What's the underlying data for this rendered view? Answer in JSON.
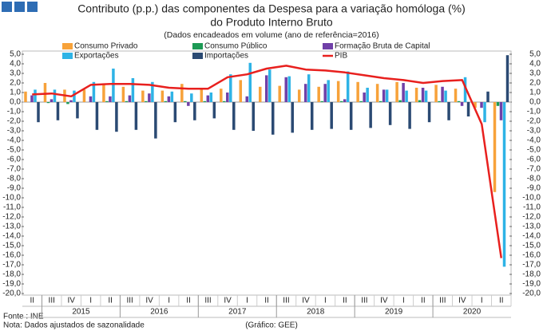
{
  "chart_data": {
    "type": "bar",
    "title": "Contributo (p.p.) das componentes da Despesa para a variação homóloga (%)",
    "title_line2": "do Produto Interno Bruto",
    "subtitle": "(Dados encadeados em volume (ano de referência=2016)",
    "source": "Fonte : INE",
    "note": "Nota: Dados ajustados de sazonalidade",
    "credit": "(Gráfico: GEE)",
    "categories": [
      "II",
      "III",
      "IV",
      "I",
      "II",
      "III",
      "IV",
      "I",
      "II",
      "III",
      "IV",
      "I",
      "II",
      "III",
      "IV",
      "I",
      "II",
      "III",
      "IV",
      "I",
      "II",
      "III",
      "IV",
      "I",
      "II"
    ],
    "year_labels": [
      "2015",
      "2016",
      "2017",
      "2018",
      "2019",
      "2020"
    ],
    "legend": "top",
    "grid": false,
    "series": [
      {
        "name": "Consumo Privado",
        "color": "#f7a23a",
        "values": [
          1.1,
          2.0,
          1.3,
          1.3,
          1.8,
          1.6,
          1.2,
          1.2,
          1.9,
          1.4,
          1.4,
          2.3,
          1.6,
          1.7,
          1.3,
          1.6,
          2.2,
          2.1,
          1.9,
          2.1,
          1.5,
          1.8,
          1.4,
          -0.6,
          -9.4
        ]
      },
      {
        "name": "Consumo Público",
        "color": "#1d9a55",
        "values": [
          0.0,
          -0.1,
          -0.2,
          0.0,
          0.1,
          0.1,
          0.1,
          0.1,
          0.1,
          0.1,
          0.1,
          0.0,
          0.0,
          0.0,
          0.0,
          0.1,
          0.1,
          0.1,
          0.1,
          0.2,
          0.2,
          0.1,
          0.1,
          0.0,
          -0.4
        ]
      },
      {
        "name": "Formação Bruta de Capital",
        "color": "#7040a8",
        "values": [
          0.7,
          0.3,
          0.2,
          0.6,
          0.6,
          0.7,
          0.9,
          0.6,
          -0.4,
          0.7,
          1.0,
          0.6,
          2.8,
          2.6,
          1.9,
          1.9,
          0.3,
          1.0,
          1.3,
          2.0,
          1.5,
          1.6,
          -0.4,
          -0.6,
          -1.9
        ]
      },
      {
        "name": "Exportações",
        "color": "#2eb3e6",
        "values": [
          1.3,
          1.3,
          1.2,
          2.1,
          3.5,
          2.5,
          2.1,
          1.1,
          0.9,
          1.0,
          2.9,
          4.1,
          3.4,
          2.7,
          2.9,
          2.3,
          3.2,
          1.5,
          1.3,
          1.2,
          1.2,
          1.2,
          2.6,
          -2.1,
          -17.2
        ]
      },
      {
        "name": "Importações",
        "color": "#2b4a73",
        "values": [
          -2.1,
          -1.9,
          -1.7,
          -2.9,
          -3.1,
          -2.9,
          -3.8,
          -2.1,
          -1.9,
          -1.7,
          -2.9,
          -3.0,
          -3.4,
          -3.2,
          -2.9,
          -2.8,
          -2.9,
          -2.7,
          -2.4,
          -2.8,
          -2.1,
          -1.9,
          -1.5,
          1.1,
          4.9
        ]
      },
      {
        "name": "PIB",
        "color": "#e8201e",
        "type": "line",
        "values": [
          0.8,
          0.9,
          0.6,
          1.8,
          1.9,
          1.9,
          1.8,
          1.5,
          1.4,
          1.4,
          2.6,
          2.9,
          3.5,
          3.8,
          3.4,
          3.3,
          3.1,
          2.8,
          2.5,
          2.3,
          2.0,
          2.2,
          2.3,
          -2.3,
          -16.3
        ]
      }
    ],
    "ylim": [
      -20,
      5
    ],
    "yticks": [
      {
        "value": 5,
        "label": "5,0"
      },
      {
        "value": 4,
        "label": "4,0"
      },
      {
        "value": 3,
        "label": "3,0"
      },
      {
        "value": 2,
        "label": "2,0"
      },
      {
        "value": 1,
        "label": "1,0"
      },
      {
        "value": 0,
        "label": "0,0"
      },
      {
        "value": -1,
        "label": "-1,0"
      },
      {
        "value": -2,
        "label": "-2,0"
      },
      {
        "value": -3,
        "label": "-3,0"
      },
      {
        "value": -4,
        "label": "-4,0"
      },
      {
        "value": -5,
        "label": "-5,0"
      },
      {
        "value": -6,
        "label": "-6,0"
      },
      {
        "value": -7,
        "label": "-7,0"
      },
      {
        "value": -8,
        "label": "-8,0"
      },
      {
        "value": -9,
        "label": "-9,0"
      },
      {
        "value": -10,
        "label": "-10,0"
      },
      {
        "value": -11,
        "label": "-11,0"
      },
      {
        "value": -12,
        "label": "-12,0"
      },
      {
        "value": -13,
        "label": "-13,0"
      },
      {
        "value": -14,
        "label": "-14,0"
      },
      {
        "value": -15,
        "label": "-15,0"
      },
      {
        "value": -16,
        "label": "-16,0"
      },
      {
        "value": -17,
        "label": "-17,0"
      },
      {
        "value": -18,
        "label": "-18,0"
      },
      {
        "value": -19,
        "label": "-19,0"
      },
      {
        "value": -20,
        "label": "-20,0"
      }
    ],
    "y2lim": [
      -20,
      5
    ],
    "y2ticks": [
      {
        "value": 5,
        "label": "5,0"
      },
      {
        "value": 4,
        "label": "4,0"
      },
      {
        "value": 3,
        "label": "3,0"
      },
      {
        "value": 2,
        "label": "2,0"
      },
      {
        "value": 1,
        "label": "1,0"
      },
      {
        "value": 0,
        "label": "0,0"
      },
      {
        "value": -1,
        "label": "-1,0"
      },
      {
        "value": -2,
        "label": "-2,0"
      },
      {
        "value": -3,
        "label": "-3,0"
      },
      {
        "value": -4,
        "label": "-4,0"
      },
      {
        "value": -5,
        "label": "-5,0"
      },
      {
        "value": -6,
        "label": "-6,0"
      },
      {
        "value": -7,
        "label": "-7,0"
      },
      {
        "value": -8,
        "label": "-8,0"
      },
      {
        "value": -9,
        "label": "-9,0"
      },
      {
        "value": -10,
        "label": "-10,0"
      },
      {
        "value": -11,
        "label": "-11,0"
      },
      {
        "value": -12,
        "label": "-12,0"
      },
      {
        "value": -13,
        "label": "-13,0"
      },
      {
        "value": -14,
        "label": "-14,0"
      },
      {
        "value": -15,
        "label": "-15,0"
      },
      {
        "value": -16,
        "label": "-16,0"
      },
      {
        "value": -17,
        "label": "-17,0"
      },
      {
        "value": -18,
        "label": "-18,0"
      },
      {
        "value": -19,
        "label": "-19,0"
      },
      {
        "value": -20,
        "label": "-20,0"
      }
    ]
  }
}
